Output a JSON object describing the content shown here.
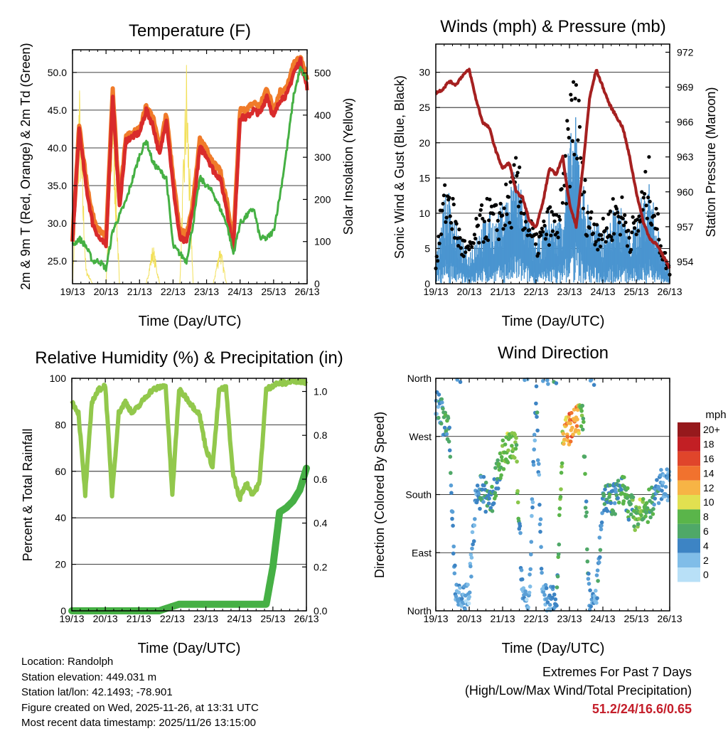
{
  "xticks": [
    "19/13",
    "20/13",
    "21/13",
    "22/13",
    "23/13",
    "24/13",
    "25/13",
    "26/13"
  ],
  "xlabel": "Time (Day/UTC)",
  "colors": {
    "t2m": "#d92b2b",
    "t9m": "#f07b2a",
    "td": "#45b043",
    "solar": "#f2e05a",
    "wind": "#4a95d0",
    "gust": "#000000",
    "pressure": "#a52020",
    "rh": "#92c84c",
    "precip": "#46b045",
    "extreme": "#c41e2a"
  },
  "chart_data": [
    {
      "id": "temperature",
      "type": "line",
      "title": "Temperature (F)",
      "ylabel": "2m & 9m T (Red, Orange) & 2m Td (Green)",
      "y2label": "Solar Insolation (Yellow)",
      "ylim": [
        22,
        53
      ],
      "y2lim": [
        0,
        555
      ],
      "yticks": [
        "25.0",
        "30.0",
        "35.0",
        "40.0",
        "45.0",
        "50.0"
      ],
      "y2ticks": [
        "0",
        "100",
        "200",
        "300",
        "400",
        "500"
      ],
      "x": [
        0,
        0.2,
        0.4,
        0.6,
        0.8,
        1.0,
        1.2,
        1.4,
        1.6,
        1.8,
        2.0,
        2.2,
        2.4,
        2.6,
        2.8,
        3.0,
        3.2,
        3.4,
        3.6,
        3.8,
        4.0,
        4.2,
        4.4,
        4.6,
        4.8,
        5.0,
        5.2,
        5.4,
        5.6,
        5.8,
        6.0,
        6.2,
        6.4,
        6.6,
        6.8,
        7.0
      ],
      "series": [
        {
          "name": "2m T",
          "values": [
            27.5,
            42.5,
            35,
            30,
            28,
            27,
            47,
            32,
            41,
            41.5,
            42,
            45,
            43,
            39,
            44,
            35,
            28,
            27.5,
            32,
            40,
            39,
            37,
            36,
            32,
            26.5,
            44,
            44,
            45,
            44.5,
            47,
            44,
            46.5,
            47,
            50,
            51.5,
            48
          ]
        },
        {
          "name": "9m T",
          "values": [
            28,
            43,
            36,
            31,
            29,
            28,
            47.5,
            33,
            41.5,
            42,
            42.5,
            45.5,
            44,
            40,
            44.5,
            36,
            29,
            28.5,
            33,
            41,
            40,
            38,
            37,
            33,
            27.5,
            45,
            45,
            46,
            45.5,
            48,
            45,
            47.5,
            48,
            51,
            52,
            49
          ]
        },
        {
          "name": "2m Td",
          "values": [
            27,
            28,
            27,
            25,
            25,
            24,
            29,
            31,
            33,
            36,
            39,
            41,
            38,
            37,
            36,
            27,
            26,
            25,
            30,
            36,
            35,
            34,
            32,
            30,
            26,
            30,
            31,
            32,
            28,
            28,
            29,
            34,
            40,
            47,
            50.5,
            49
          ]
        },
        {
          "name": "Solar",
          "values": [
            0,
            500,
            40,
            0,
            0,
            0,
            500,
            0,
            0,
            0,
            0,
            0,
            100,
            0,
            0,
            0,
            0,
            550,
            0,
            0,
            0,
            0,
            100,
            0,
            0,
            0,
            0,
            0,
            0,
            0,
            0,
            0,
            0,
            0,
            0,
            0
          ]
        }
      ]
    },
    {
      "id": "winds",
      "type": "scatter",
      "title": "Winds (mph) & Pressure (mb)",
      "ylabel": "Sonic Wind & Gust (Blue, Black)",
      "y2label": "Station Pressure (Maroon)",
      "ylim": [
        0,
        34
      ],
      "y2lim": [
        952.1,
        972.7
      ],
      "yticks": [
        "0",
        "5",
        "10",
        "15",
        "20",
        "25",
        "30"
      ],
      "y2ticks": [
        "954",
        "957",
        "960",
        "963",
        "966",
        "969",
        "972"
      ],
      "x": [
        0,
        0.2,
        0.4,
        0.6,
        0.8,
        1.0,
        1.2,
        1.4,
        1.6,
        1.8,
        2.0,
        2.2,
        2.4,
        2.6,
        2.8,
        3.0,
        3.2,
        3.4,
        3.6,
        3.8,
        4.0,
        4.2,
        4.4,
        4.6,
        4.8,
        5.0,
        5.2,
        5.4,
        5.6,
        5.8,
        6.0,
        6.2,
        6.4,
        6.6,
        6.8,
        7.0
      ],
      "series": [
        {
          "name": "Wind",
          "values": [
            2,
            8,
            9,
            6,
            4,
            3,
            5,
            6,
            7,
            6,
            8,
            9,
            12,
            9,
            6,
            4,
            5,
            7,
            6,
            8,
            14,
            16,
            10,
            7,
            6,
            5,
            6,
            8,
            7,
            5,
            6,
            9,
            10,
            6,
            3,
            1
          ]
        },
        {
          "name": "Gust",
          "values": [
            3,
            12,
            14,
            9,
            6,
            5,
            8,
            10,
            11,
            10,
            12,
            13,
            16,
            13,
            9,
            6,
            8,
            10,
            9,
            13,
            24,
            30,
            15,
            10,
            9,
            8,
            10,
            12,
            11,
            8,
            9,
            13,
            16,
            10,
            5,
            2
          ]
        },
        {
          "name": "Pressure",
          "values": [
            968.5,
            968.8,
            969.5,
            969.2,
            970,
            970.5,
            968,
            966,
            965.5,
            963.5,
            962,
            962.5,
            960,
            959.5,
            957.5,
            957,
            959,
            962,
            961.5,
            963,
            959,
            957,
            962,
            968,
            970.5,
            969,
            967.5,
            966.5,
            965.5,
            963,
            960,
            957.5,
            956,
            955.5,
            954.5,
            953.5
          ]
        }
      ]
    },
    {
      "id": "humidity",
      "type": "line",
      "title": "Relative Humidity (%) & Precipitation (in)",
      "ylabel": "Percent & Total Rainfall",
      "ylim": [
        0,
        100
      ],
      "y2lim": [
        0,
        1.06
      ],
      "yticks": [
        "0",
        "20",
        "40",
        "60",
        "80",
        "100"
      ],
      "y2ticks": [
        "0.0",
        "0.2",
        "0.4",
        "0.6",
        "0.8",
        "1.0"
      ],
      "x": [
        0,
        0.2,
        0.4,
        0.6,
        0.8,
        1.0,
        1.2,
        1.4,
        1.6,
        1.8,
        2.0,
        2.2,
        2.4,
        2.6,
        2.8,
        3.0,
        3.2,
        3.4,
        3.6,
        3.8,
        4.0,
        4.2,
        4.4,
        4.6,
        4.8,
        5.0,
        5.2,
        5.4,
        5.6,
        5.8,
        6.0,
        6.2,
        6.4,
        6.6,
        6.8,
        7.0
      ],
      "series": [
        {
          "name": "RH",
          "values": [
            90,
            85,
            50,
            90,
            95,
            97,
            50,
            85,
            90,
            85,
            88,
            92,
            95,
            96,
            97,
            50,
            95,
            92,
            88,
            85,
            70,
            62,
            95,
            96,
            60,
            48,
            55,
            50,
            55,
            95,
            97,
            98,
            98,
            99,
            99,
            98
          ]
        },
        {
          "name": "Precip",
          "values": [
            0,
            0,
            0,
            0,
            0,
            0,
            0,
            0,
            0,
            0,
            0,
            0,
            0,
            0,
            0.01,
            0.02,
            0.03,
            0.03,
            0.03,
            0.03,
            0.03,
            0.03,
            0.03,
            0.03,
            0.03,
            0.03,
            0.03,
            0.03,
            0.03,
            0.03,
            0.2,
            0.45,
            0.47,
            0.5,
            0.55,
            0.65
          ]
        }
      ]
    },
    {
      "id": "direction",
      "type": "scatter",
      "title": "Wind Direction",
      "ylabel": "Direction (Colored By Speed)",
      "yticks": [
        "North",
        "East",
        "South",
        "West",
        "North"
      ],
      "legend": {
        "title": "mph",
        "labels": [
          "20+",
          "18",
          "16",
          "14",
          "12",
          "10",
          "8",
          "6",
          "4",
          "2",
          "0"
        ]
      },
      "x": [
        0,
        0.2,
        0.4,
        0.6,
        0.8,
        1.0,
        1.2,
        1.4,
        1.6,
        1.8,
        2.0,
        2.2,
        2.4,
        2.6,
        2.8,
        3.0,
        3.2,
        3.4,
        3.6,
        3.8,
        4.0,
        4.2,
        4.4,
        4.6,
        4.8,
        5.0,
        5.2,
        5.4,
        5.6,
        5.8,
        6.0,
        6.2,
        6.4,
        6.6,
        6.8,
        7.0
      ],
      "series": [
        {
          "name": "Direction (deg)",
          "values": [
            330,
            300,
            270,
            20,
            15,
            30,
            170,
            190,
            160,
            200,
            240,
            255,
            250,
            20,
            15,
            345,
            20,
            15,
            10,
            270,
            280,
            290,
            300,
            10,
            15,
            180,
            170,
            175,
            190,
            160,
            145,
            150,
            165,
            180,
            200,
            190
          ]
        },
        {
          "name": "Speed (mph)",
          "values": [
            4,
            6,
            8,
            3,
            4,
            2,
            5,
            6,
            8,
            7,
            10,
            12,
            11,
            4,
            3,
            5,
            4,
            3,
            6,
            14,
            18,
            16,
            10,
            5,
            4,
            7,
            8,
            6,
            9,
            8,
            10,
            11,
            8,
            6,
            4,
            3
          ]
        }
      ]
    }
  ],
  "info": {
    "location": "Location: Randolph",
    "elevation": "Station elevation: 449.031 m",
    "latlon": "Station lat/lon: 42.1493; -78.901",
    "created": "Figure created on Wed, 2025-11-26, at 13:31 UTC",
    "latest": "Most recent data timestamp: 2025/11/26 13:15:00"
  },
  "extremes": {
    "heading": "Extremes For Past 7 Days",
    "subheading": "(High/Low/Max Wind/Total Precipitation)",
    "value": "51.2/24/16.6/0.65"
  }
}
